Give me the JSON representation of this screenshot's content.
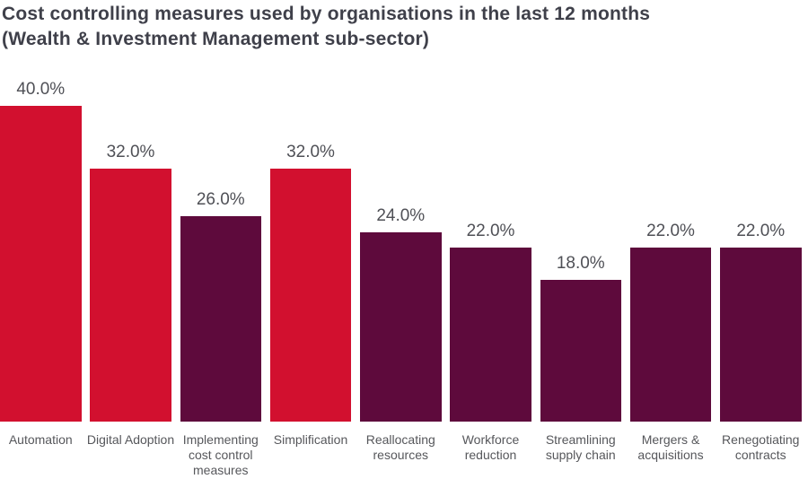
{
  "chart_data": {
    "type": "bar",
    "title": "Cost controlling measures used by organisations in the last 12 months",
    "subtitle": "(Wealth & Investment Management sub-sector)",
    "categories": [
      "Automation",
      "Digital Adoption",
      "Implementing cost control measures",
      "Simplification",
      "Reallocating resources",
      "Workforce reduction",
      "Streamlining supply chain",
      "Mergers & acquisitions",
      "Renegotiating contracts"
    ],
    "values": [
      40.0,
      32.0,
      26.0,
      32.0,
      24.0,
      22.0,
      18.0,
      22.0,
      22.0
    ],
    "value_labels": [
      "40.0%",
      "32.0%",
      "26.0%",
      "32.0%",
      "24.0%",
      "22.0%",
      "18.0%",
      "22.0%",
      "22.0%"
    ],
    "bar_colors": [
      "#d2102f",
      "#d2102f",
      "#5e0a3c",
      "#d2102f",
      "#5e0a3c",
      "#5e0a3c",
      "#5e0a3c",
      "#5e0a3c",
      "#5e0a3c"
    ],
    "colors": {
      "highlight_red": "#d2102f",
      "dark_plum": "#5e0a3c",
      "title_text": "#3f404a",
      "value_label_text": "#4f5056",
      "category_label_text": "#56575b",
      "background": "#ffffff"
    },
    "xlabel": "",
    "ylabel": "",
    "ylim": [
      0,
      44
    ],
    "grid": false,
    "legend": false,
    "axes_visible": false,
    "data_labels": "percent with one decimal above each bar"
  }
}
